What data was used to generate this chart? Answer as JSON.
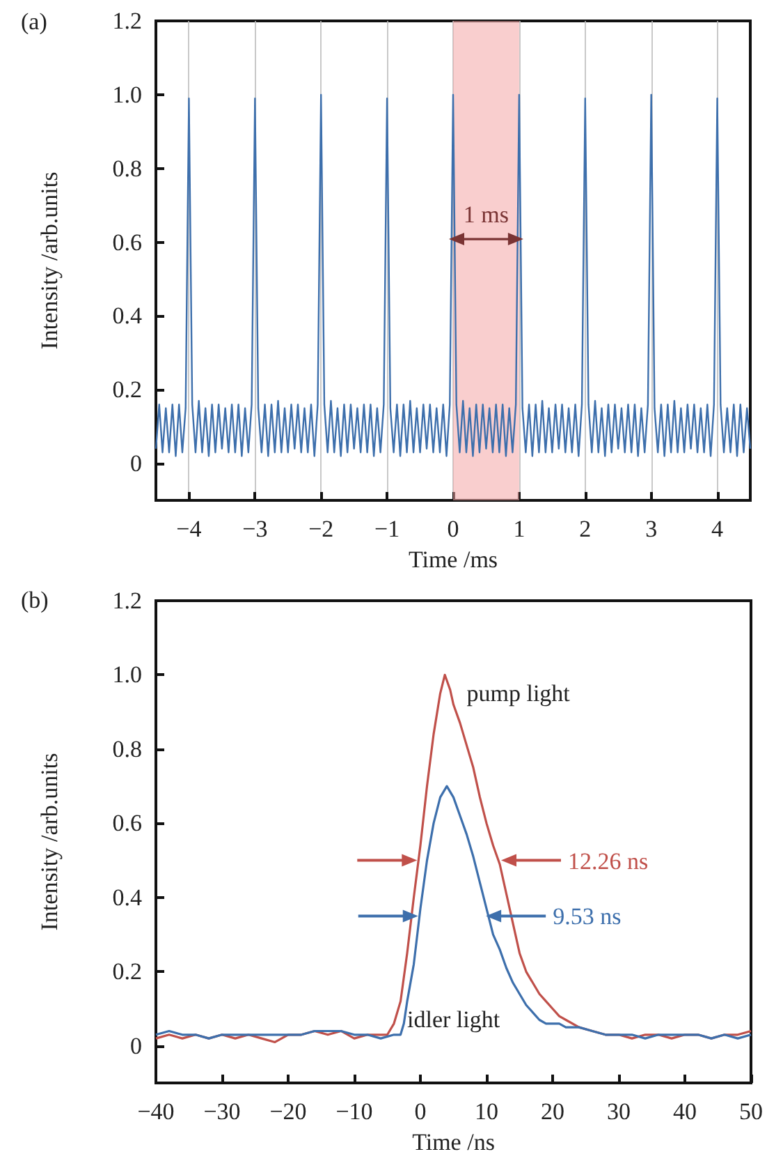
{
  "chart_data": [
    {
      "type": "line",
      "title": "(a)",
      "xlabel": "Time /ms",
      "ylabel": "Intensity /arb.units",
      "xlim": [
        -4.5,
        4.5
      ],
      "xticks": [
        {
          "value": -4,
          "label": "−4"
        },
        {
          "value": -3,
          "label": "−3"
        },
        {
          "value": -2,
          "label": "−2"
        },
        {
          "value": -1,
          "label": "−1"
        },
        0,
        1,
        2,
        3,
        4
      ],
      "ylim": [
        -0.1,
        1.2
      ],
      "yticks": [
        0,
        0.2,
        0.4,
        0.6,
        0.8,
        {
          "value": 1,
          "label": "1.0"
        },
        1.2
      ],
      "grid": "x",
      "bands": [
        {
          "axis": "x",
          "from": 0,
          "to": 1,
          "color": "#f4a6a6",
          "label": "1 ms"
        }
      ],
      "series": [
        {
          "color": "#3d6fac",
          "x": [
            -4.5,
            -4.45,
            -4.4,
            -4.35,
            -4.3,
            -4.25,
            -4.2,
            -4.15,
            -4.1,
            -4.05,
            -4,
            -3.95,
            -3.9,
            -3.85,
            -3.8,
            -3.75,
            -3.7,
            -3.65,
            -3.6,
            -3.55,
            -3.5,
            -3.45,
            -3.4,
            -3.35,
            -3.3,
            -3.25,
            -3.2,
            -3.15,
            -3.1,
            -3.05,
            -3,
            -2.95,
            -2.9,
            -2.85,
            -2.8,
            -2.75,
            -2.7,
            -2.65,
            -2.6,
            -2.55,
            -2.5,
            -2.45,
            -2.4,
            -2.35,
            -2.3,
            -2.25,
            -2.2,
            -2.15,
            -2.1,
            -2.05,
            -2,
            -1.95,
            -1.9,
            -1.85,
            -1.8,
            -1.75,
            -1.7,
            -1.65,
            -1.6,
            -1.55,
            -1.5,
            -1.45,
            -1.4,
            -1.35,
            -1.3,
            -1.25,
            -1.2,
            -1.15,
            -1.1,
            -1.05,
            -1,
            -0.95,
            -0.9,
            -0.85,
            -0.8,
            -0.75,
            -0.7,
            -0.65,
            -0.6,
            -0.55,
            -0.5,
            -0.45,
            -0.4,
            -0.35,
            -0.3,
            -0.25,
            -0.2,
            -0.15,
            -0.1,
            -0.05,
            0,
            0.05,
            0.1,
            0.15,
            0.2,
            0.25,
            0.3,
            0.35,
            0.4,
            0.45,
            0.5,
            0.55,
            0.6,
            0.65,
            0.7,
            0.75,
            0.8,
            0.85,
            0.9,
            0.95,
            1,
            1.05,
            1.1,
            1.15,
            1.2,
            1.25,
            1.3,
            1.35,
            1.4,
            1.45,
            1.5,
            1.55,
            1.6,
            1.65,
            1.7,
            1.75,
            1.8,
            1.85,
            1.9,
            1.95,
            2,
            2.05,
            2.1,
            2.15,
            2.2,
            2.25,
            2.3,
            2.35,
            2.4,
            2.45,
            2.5,
            2.55,
            2.6,
            2.65,
            2.7,
            2.75,
            2.8,
            2.85,
            2.9,
            2.95,
            3,
            3.05,
            3.1,
            3.15,
            3.2,
            3.25,
            3.3,
            3.35,
            3.4,
            3.45,
            3.5,
            3.55,
            3.6,
            3.65,
            3.7,
            3.75,
            3.8,
            3.85,
            3.9,
            3.95,
            4,
            4.05,
            4.1,
            4.15,
            4.2,
            4.25,
            4.3,
            4.35,
            4.4,
            4.45,
            4.5
          ],
          "values": [
            0.04,
            0.16,
            0.03,
            0.15,
            0.03,
            0.16,
            0.02,
            0.16,
            0.03,
            0.15,
            0.99,
            0.16,
            0.03,
            0.17,
            0.03,
            0.15,
            0.02,
            0.16,
            0.03,
            0.16,
            0.04,
            0.15,
            0.03,
            0.16,
            0.03,
            0.16,
            0.02,
            0.15,
            0.03,
            0.16,
            0.99,
            0.15,
            0.03,
            0.16,
            0.02,
            0.16,
            0.03,
            0.17,
            0.03,
            0.15,
            0.03,
            0.16,
            0.04,
            0.16,
            0.03,
            0.15,
            0.03,
            0.16,
            0.02,
            0.16,
            1.0,
            0.16,
            0.03,
            0.17,
            0.03,
            0.15,
            0.02,
            0.16,
            0.03,
            0.16,
            0.04,
            0.15,
            0.03,
            0.16,
            0.03,
            0.16,
            0.02,
            0.15,
            0.03,
            0.16,
            0.99,
            0.15,
            0.03,
            0.16,
            0.02,
            0.16,
            0.03,
            0.17,
            0.03,
            0.15,
            0.03,
            0.16,
            0.04,
            0.16,
            0.03,
            0.15,
            0.03,
            0.16,
            0.02,
            0.16,
            1.0,
            0.16,
            0.03,
            0.17,
            0.03,
            0.15,
            0.02,
            0.16,
            0.03,
            0.16,
            0.04,
            0.15,
            0.03,
            0.16,
            0.03,
            0.16,
            0.02,
            0.15,
            0.03,
            0.16,
            1.0,
            0.15,
            0.03,
            0.16,
            0.02,
            0.16,
            0.03,
            0.17,
            0.03,
            0.15,
            0.03,
            0.16,
            0.04,
            0.16,
            0.03,
            0.15,
            0.03,
            0.16,
            0.02,
            0.16,
            0.99,
            0.16,
            0.03,
            0.17,
            0.03,
            0.15,
            0.02,
            0.16,
            0.03,
            0.16,
            0.04,
            0.15,
            0.03,
            0.16,
            0.03,
            0.16,
            0.02,
            0.15,
            0.03,
            0.16,
            1.0,
            0.15,
            0.03,
            0.16,
            0.02,
            0.16,
            0.03,
            0.17,
            0.03,
            0.15,
            0.03,
            0.16,
            0.04,
            0.16,
            0.03,
            0.15,
            0.03,
            0.16,
            0.02,
            0.16,
            0.99,
            0.16,
            0.03,
            0.15,
            0.03,
            0.16,
            0.02,
            0.16,
            0.03,
            0.15,
            0.04
          ]
        }
      ]
    },
    {
      "type": "line",
      "title": "(b)",
      "xlabel": "Time /ns",
      "ylabel": "Intensity /arb.units",
      "xlim": [
        -40,
        50
      ],
      "xticks": [
        {
          "value": -40,
          "label": "−40"
        },
        {
          "value": -30,
          "label": "−30"
        },
        {
          "value": -20,
          "label": "−20"
        },
        {
          "value": -10,
          "label": "−10"
        },
        0,
        10,
        20,
        30,
        40,
        50
      ],
      "ylim": [
        -0.1,
        1.2
      ],
      "yticks": [
        0,
        0.2,
        0.4,
        0.6,
        0.8,
        {
          "value": 1,
          "label": "1.0"
        },
        1.2
      ],
      "annotations": [
        {
          "text": "12.26 ns",
          "x": 12,
          "y": 0.5
        },
        {
          "text": "9.53 ns",
          "x": 9.7,
          "y": 0.35
        }
      ],
      "series": [
        {
          "name": "pump light",
          "color": "#c0504a",
          "x": [
            -40,
            -38,
            -36,
            -34,
            -32,
            -30,
            -28,
            -26,
            -24,
            -22,
            -20,
            -18,
            -16,
            -14,
            -12,
            -10,
            -8,
            -6,
            -5,
            -4,
            -3,
            -2,
            -1,
            0,
            1,
            2,
            3,
            3.7,
            4.5,
            5,
            6,
            7,
            8,
            9,
            10,
            11,
            12,
            13,
            14,
            15,
            16,
            17,
            18,
            19,
            20,
            21,
            22,
            24,
            26,
            28,
            30,
            32,
            34,
            36,
            38,
            40,
            42,
            44,
            46,
            48,
            50
          ],
          "values": [
            0.02,
            0.03,
            0.02,
            0.03,
            0.02,
            0.03,
            0.02,
            0.03,
            0.02,
            0.01,
            0.03,
            0.03,
            0.04,
            0.03,
            0.04,
            0.02,
            0.03,
            0.03,
            0.03,
            0.06,
            0.12,
            0.25,
            0.4,
            0.54,
            0.7,
            0.84,
            0.95,
            1.0,
            0.96,
            0.92,
            0.87,
            0.81,
            0.75,
            0.67,
            0.6,
            0.54,
            0.49,
            0.41,
            0.33,
            0.25,
            0.2,
            0.17,
            0.14,
            0.12,
            0.1,
            0.08,
            0.07,
            0.05,
            0.04,
            0.03,
            0.03,
            0.02,
            0.03,
            0.03,
            0.02,
            0.03,
            0.03,
            0.02,
            0.03,
            0.03,
            0.04
          ]
        },
        {
          "name": "idler light",
          "color": "#3d6fac",
          "x": [
            -40,
            -38,
            -36,
            -34,
            -32,
            -30,
            -28,
            -26,
            -24,
            -22,
            -20,
            -18,
            -16,
            -14,
            -12,
            -10,
            -8,
            -6,
            -4,
            -3,
            -2.5,
            -2,
            -1,
            0,
            1,
            2,
            3,
            4,
            5,
            6,
            7,
            8,
            9,
            10,
            11,
            12,
            13,
            14,
            15,
            16,
            17,
            18,
            19,
            21,
            22,
            24,
            26,
            28,
            30,
            32,
            34,
            36,
            38,
            40,
            42,
            44,
            46,
            48,
            50
          ],
          "values": [
            0.03,
            0.04,
            0.03,
            0.03,
            0.02,
            0.03,
            0.03,
            0.03,
            0.03,
            0.03,
            0.03,
            0.03,
            0.04,
            0.04,
            0.04,
            0.03,
            0.03,
            0.02,
            0.03,
            0.03,
            0.06,
            0.12,
            0.22,
            0.37,
            0.5,
            0.6,
            0.67,
            0.7,
            0.67,
            0.62,
            0.57,
            0.51,
            0.44,
            0.37,
            0.3,
            0.26,
            0.21,
            0.17,
            0.14,
            0.11,
            0.09,
            0.07,
            0.06,
            0.06,
            0.05,
            0.05,
            0.04,
            0.03,
            0.03,
            0.03,
            0.02,
            0.03,
            0.03,
            0.03,
            0.03,
            0.02,
            0.03,
            0.02,
            0.03
          ]
        }
      ]
    }
  ]
}
